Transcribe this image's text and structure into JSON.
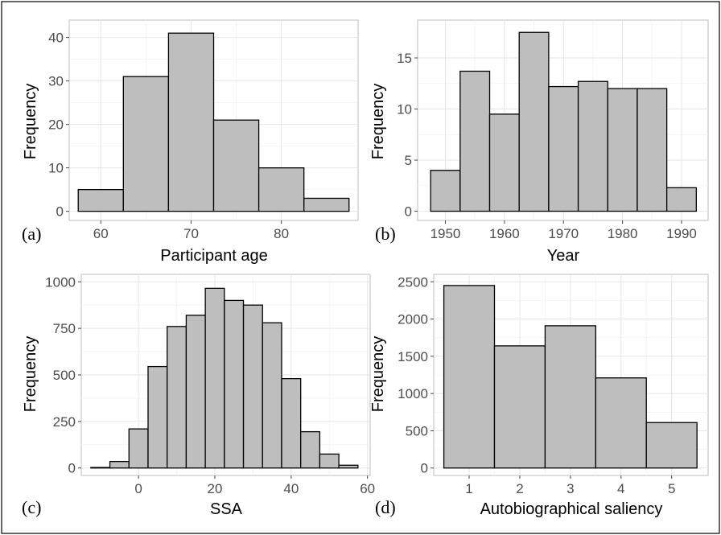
{
  "chart_data": [
    {
      "type": "bar",
      "panel_label": "(a)",
      "xlabel": "Participant age",
      "ylabel": "Frequency",
      "x_ticks": [
        60,
        70,
        80
      ],
      "y_ticks": [
        0,
        10,
        20,
        30,
        40
      ],
      "xlim": [
        56.5,
        88.5
      ],
      "ylim": [
        -2.1,
        44
      ],
      "bins": [
        {
          "x0": 57.5,
          "x1": 62.5,
          "count": 5
        },
        {
          "x0": 62.5,
          "x1": 67.5,
          "count": 31
        },
        {
          "x0": 67.5,
          "x1": 72.5,
          "count": 41
        },
        {
          "x0": 72.5,
          "x1": 77.5,
          "count": 21
        },
        {
          "x0": 77.5,
          "x1": 82.5,
          "count": 10
        },
        {
          "x0": 82.5,
          "x1": 87.5,
          "count": 3
        }
      ]
    },
    {
      "type": "bar",
      "panel_label": "(b)",
      "xlabel": "Year",
      "ylabel": "Frequency",
      "x_ticks": [
        1950,
        1960,
        1970,
        1980,
        1990
      ],
      "y_ticks": [
        0,
        5,
        10,
        15
      ],
      "xlim": [
        1945.3,
        1994.5
      ],
      "ylim": [
        -0.9,
        18.7
      ],
      "bins": [
        {
          "x0": 1947.5,
          "x1": 1952.5,
          "count": 4.0
        },
        {
          "x0": 1952.5,
          "x1": 1957.5,
          "count": 13.7
        },
        {
          "x0": 1957.5,
          "x1": 1962.5,
          "count": 9.5
        },
        {
          "x0": 1962.5,
          "x1": 1967.5,
          "count": 17.5
        },
        {
          "x0": 1967.5,
          "x1": 1972.5,
          "count": 12.2
        },
        {
          "x0": 1972.5,
          "x1": 1977.5,
          "count": 12.7
        },
        {
          "x0": 1977.5,
          "x1": 1982.5,
          "count": 12.0
        },
        {
          "x0": 1982.5,
          "x1": 1987.5,
          "count": 12.0
        },
        {
          "x0": 1987.5,
          "x1": 1992.5,
          "count": 2.3
        }
      ]
    },
    {
      "type": "bar",
      "panel_label": "(c)",
      "xlabel": "SSA",
      "ylabel": "Frequency",
      "x_ticks": [
        0,
        20,
        40,
        60
      ],
      "y_ticks": [
        0,
        250,
        500,
        750,
        1000
      ],
      "xlim": [
        -15,
        60.7
      ],
      "ylim": [
        -40,
        1040
      ],
      "bins": [
        {
          "x0": -12.5,
          "x1": -7.5,
          "count": 3
        },
        {
          "x0": -7.5,
          "x1": -2.5,
          "count": 35
        },
        {
          "x0": -2.5,
          "x1": 2.5,
          "count": 210
        },
        {
          "x0": 2.5,
          "x1": 7.5,
          "count": 545
        },
        {
          "x0": 7.5,
          "x1": 12.5,
          "count": 760
        },
        {
          "x0": 12.5,
          "x1": 17.5,
          "count": 820
        },
        {
          "x0": 17.5,
          "x1": 22.5,
          "count": 965
        },
        {
          "x0": 22.5,
          "x1": 27.5,
          "count": 900
        },
        {
          "x0": 27.5,
          "x1": 32.5,
          "count": 875
        },
        {
          "x0": 32.5,
          "x1": 37.5,
          "count": 780
        },
        {
          "x0": 37.5,
          "x1": 42.5,
          "count": 480
        },
        {
          "x0": 42.5,
          "x1": 47.5,
          "count": 195
        },
        {
          "x0": 47.5,
          "x1": 52.5,
          "count": 75
        },
        {
          "x0": 52.5,
          "x1": 57.5,
          "count": 15
        }
      ]
    },
    {
      "type": "bar",
      "panel_label": "(d)",
      "xlabel": "Autobiographical saliency",
      "ylabel": "Frequency",
      "x_ticks": [
        1,
        2,
        3,
        4,
        5
      ],
      "y_ticks": [
        0,
        500,
        1000,
        1500,
        2000,
        2500
      ],
      "xlim": [
        0.3,
        5.72
      ],
      "ylim": [
        -100,
        2600
      ],
      "bins": [
        {
          "x0": 0.5,
          "x1": 1.5,
          "count": 2450
        },
        {
          "x0": 1.5,
          "x1": 2.5,
          "count": 1640
        },
        {
          "x0": 2.5,
          "x1": 3.5,
          "count": 1910
        },
        {
          "x0": 3.5,
          "x1": 4.5,
          "count": 1210
        },
        {
          "x0": 4.5,
          "x1": 5.5,
          "count": 610
        }
      ]
    }
  ]
}
